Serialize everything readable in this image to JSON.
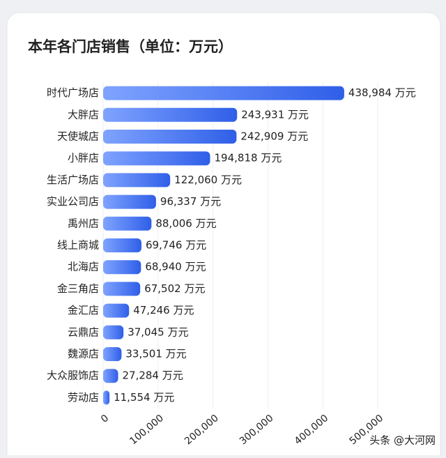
{
  "chart_data": {
    "type": "bar",
    "orientation": "horizontal",
    "title": "本年各门店销售（单位：万元）",
    "categories": [
      "时代广场店",
      "大胖店",
      "天使城店",
      "小胖店",
      "生活广场店",
      "实业公司店",
      "禹州店",
      "线上商城",
      "北海店",
      "金三角店",
      "金汇店",
      "云鼎店",
      "魏源店",
      "大众服饰店",
      "劳动店"
    ],
    "values": [
      438984,
      243931,
      242909,
      194818,
      122060,
      96337,
      88006,
      69746,
      68940,
      67502,
      47246,
      37045,
      33501,
      27284,
      11554
    ],
    "value_labels": [
      "438,984 万元",
      "243,931 万元",
      "242,909 万元",
      "194,818 万元",
      "122,060 万元",
      "96,337 万元",
      "88,006 万元",
      "69,746 万元",
      "68,940 万元",
      "67,502 万元",
      "47,246 万元",
      "37,045 万元",
      "33,501 万元",
      "27,284 万元",
      "11,554 万元"
    ],
    "color": "#3d6df0",
    "xlim": [
      0,
      500000
    ],
    "xticks": [
      0,
      {
        "value": 100000,
        "label": "100,000"
      },
      {
        "value": 200000,
        "label": "200,000"
      },
      {
        "value": 300000,
        "label": "300,000"
      },
      {
        "value": 400000,
        "label": "400,000"
      },
      {
        "value": 500000,
        "label": "500,000"
      }
    ],
    "grid": true,
    "watermark": "头条 @大河网"
  }
}
